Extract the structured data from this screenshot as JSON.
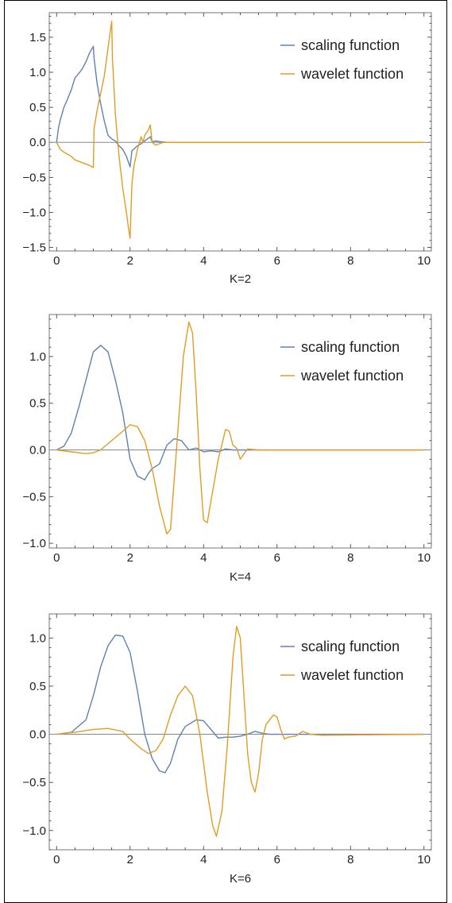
{
  "colors": {
    "scaling": "#5E81B5",
    "wavelet": "#E19C24",
    "axis": "#333333",
    "zero_line": "#888888",
    "frame": "#555555",
    "border": "#000000"
  },
  "chart_data": [
    {
      "type": "line",
      "xlabel": "K=2",
      "xlim": [
        -0.2,
        10.2
      ],
      "ylim": [
        -1.55,
        1.85
      ],
      "x_ticks": [
        0,
        2,
        4,
        6,
        8,
        10
      ],
      "x_tick_labels": [
        "0",
        "2",
        "4",
        "6",
        "8",
        "10"
      ],
      "y_ticks": [
        -1.5,
        -1.0,
        -0.5,
        0.0,
        0.5,
        1.0,
        1.5
      ],
      "y_tick_labels": [
        "−1.5",
        "−1.0",
        "−0.5",
        "0.0",
        "0.5",
        "1.0",
        "1.5"
      ],
      "legend_position": "top-right",
      "series": [
        {
          "name": "scaling function",
          "color": "#5E81B5",
          "points": [
            [
              0,
              0
            ],
            [
              0.05,
              0.2
            ],
            [
              0.1,
              0.32
            ],
            [
              0.2,
              0.5
            ],
            [
              0.3,
              0.62
            ],
            [
              0.4,
              0.75
            ],
            [
              0.5,
              0.92
            ],
            [
              0.55,
              0.95
            ],
            [
              0.6,
              0.98
            ],
            [
              0.7,
              1.05
            ],
            [
              0.8,
              1.15
            ],
            [
              0.9,
              1.28
            ],
            [
              1.0,
              1.37
            ],
            [
              1.02,
              1.2
            ],
            [
              1.1,
              0.85
            ],
            [
              1.2,
              0.55
            ],
            [
              1.3,
              0.3
            ],
            [
              1.4,
              0.1
            ],
            [
              1.5,
              0.05
            ],
            [
              1.6,
              0.02
            ],
            [
              1.7,
              -0.05
            ],
            [
              1.8,
              -0.1
            ],
            [
              1.9,
              -0.2
            ],
            [
              2.0,
              -0.35
            ],
            [
              2.05,
              -0.12
            ],
            [
              2.2,
              -0.05
            ],
            [
              2.3,
              -0.02
            ],
            [
              2.4,
              0.02
            ],
            [
              2.5,
              0.06
            ],
            [
              2.55,
              0.08
            ],
            [
              2.6,
              0.01
            ],
            [
              2.7,
              0.02
            ],
            [
              2.8,
              0.01
            ],
            [
              3.0,
              0
            ],
            [
              10,
              0
            ]
          ]
        },
        {
          "name": "wavelet function",
          "color": "#E19C24",
          "points": [
            [
              0,
              0
            ],
            [
              0.1,
              -0.1
            ],
            [
              0.2,
              -0.14
            ],
            [
              0.3,
              -0.17
            ],
            [
              0.4,
              -0.2
            ],
            [
              0.5,
              -0.25
            ],
            [
              0.6,
              -0.27
            ],
            [
              0.7,
              -0.29
            ],
            [
              0.8,
              -0.31
            ],
            [
              0.9,
              -0.33
            ],
            [
              1.0,
              -0.36
            ],
            [
              1.02,
              0.2
            ],
            [
              1.1,
              0.45
            ],
            [
              1.2,
              0.7
            ],
            [
              1.3,
              0.95
            ],
            [
              1.4,
              1.35
            ],
            [
              1.5,
              1.73
            ],
            [
              1.52,
              1.2
            ],
            [
              1.6,
              0.4
            ],
            [
              1.7,
              -0.2
            ],
            [
              1.8,
              -0.65
            ],
            [
              1.9,
              -1.0
            ],
            [
              1.95,
              -1.2
            ],
            [
              2.0,
              -1.37
            ],
            [
              2.05,
              -0.6
            ],
            [
              2.1,
              -0.35
            ],
            [
              2.2,
              -0.1
            ],
            [
              2.3,
              0.08
            ],
            [
              2.35,
              0.0
            ],
            [
              2.4,
              0.1
            ],
            [
              2.5,
              0.18
            ],
            [
              2.55,
              0.25
            ],
            [
              2.6,
              0.0
            ],
            [
              2.7,
              -0.04
            ],
            [
              2.8,
              -0.02
            ],
            [
              2.9,
              0.0
            ],
            [
              10,
              0
            ]
          ]
        }
      ]
    },
    {
      "type": "line",
      "xlabel": "K=4",
      "xlim": [
        -0.2,
        10.2
      ],
      "ylim": [
        -1.05,
        1.45
      ],
      "x_ticks": [
        0,
        2,
        4,
        6,
        8,
        10
      ],
      "x_tick_labels": [
        "0",
        "2",
        "4",
        "6",
        "8",
        "10"
      ],
      "y_ticks": [
        -1.0,
        -0.5,
        0.0,
        0.5,
        1.0
      ],
      "y_tick_labels": [
        "−1.0",
        "−0.5",
        "0.0",
        "0.5",
        "1.0"
      ],
      "legend_position": "top-right",
      "series": [
        {
          "name": "scaling function",
          "color": "#5E81B5",
          "points": [
            [
              0,
              0
            ],
            [
              0.2,
              0.04
            ],
            [
              0.4,
              0.18
            ],
            [
              0.6,
              0.45
            ],
            [
              0.8,
              0.75
            ],
            [
              1.0,
              1.05
            ],
            [
              1.2,
              1.12
            ],
            [
              1.4,
              1.05
            ],
            [
              1.6,
              0.75
            ],
            [
              1.8,
              0.4
            ],
            [
              2.0,
              -0.1
            ],
            [
              2.2,
              -0.28
            ],
            [
              2.4,
              -0.32
            ],
            [
              2.5,
              -0.25
            ],
            [
              2.6,
              -0.2
            ],
            [
              2.8,
              -0.15
            ],
            [
              3.0,
              0.05
            ],
            [
              3.2,
              0.12
            ],
            [
              3.4,
              0.1
            ],
            [
              3.6,
              0.0
            ],
            [
              3.8,
              0.02
            ],
            [
              4.0,
              -0.02
            ],
            [
              4.2,
              -0.01
            ],
            [
              4.4,
              -0.02
            ],
            [
              4.6,
              0.01
            ],
            [
              4.8,
              0.0
            ],
            [
              5.0,
              0
            ],
            [
              10,
              0
            ]
          ]
        },
        {
          "name": "wavelet function",
          "color": "#E19C24",
          "points": [
            [
              0,
              0
            ],
            [
              0.4,
              -0.02
            ],
            [
              0.8,
              -0.04
            ],
            [
              1.0,
              -0.03
            ],
            [
              1.2,
              0.0
            ],
            [
              1.5,
              0.1
            ],
            [
              1.8,
              0.2
            ],
            [
              2.0,
              0.27
            ],
            [
              2.2,
              0.25
            ],
            [
              2.4,
              0.1
            ],
            [
              2.6,
              -0.2
            ],
            [
              2.8,
              -0.6
            ],
            [
              3.0,
              -0.9
            ],
            [
              3.1,
              -0.85
            ],
            [
              3.3,
              0.2
            ],
            [
              3.45,
              1.0
            ],
            [
              3.6,
              1.37
            ],
            [
              3.7,
              1.25
            ],
            [
              3.8,
              0.6
            ],
            [
              3.9,
              -0.2
            ],
            [
              4.0,
              -0.75
            ],
            [
              4.1,
              -0.78
            ],
            [
              4.2,
              -0.55
            ],
            [
              4.4,
              -0.1
            ],
            [
              4.6,
              0.22
            ],
            [
              4.7,
              0.2
            ],
            [
              4.8,
              0.05
            ],
            [
              4.9,
              0.02
            ],
            [
              5.0,
              -0.1
            ],
            [
              5.1,
              -0.04
            ],
            [
              5.2,
              0.01
            ],
            [
              5.5,
              0.0
            ],
            [
              6.0,
              0.0
            ],
            [
              10,
              0
            ]
          ]
        }
      ]
    },
    {
      "type": "line",
      "xlabel": "K=6",
      "xlim": [
        -0.2,
        10.2
      ],
      "ylim": [
        -1.2,
        1.25
      ],
      "x_ticks": [
        0,
        2,
        4,
        6,
        8,
        10
      ],
      "x_tick_labels": [
        "0",
        "2",
        "4",
        "6",
        "8",
        "10"
      ],
      "y_ticks": [
        -1.0,
        -0.5,
        0.0,
        0.5,
        1.0
      ],
      "y_tick_labels": [
        "−1.0",
        "−0.5",
        "0.0",
        "0.5",
        "1.0"
      ],
      "legend_position": "top-right",
      "series": [
        {
          "name": "scaling function",
          "color": "#5E81B5",
          "points": [
            [
              0,
              0
            ],
            [
              0.4,
              0.02
            ],
            [
              0.8,
              0.15
            ],
            [
              1.0,
              0.4
            ],
            [
              1.2,
              0.7
            ],
            [
              1.4,
              0.92
            ],
            [
              1.6,
              1.03
            ],
            [
              1.8,
              1.02
            ],
            [
              2.0,
              0.85
            ],
            [
              2.2,
              0.45
            ],
            [
              2.4,
              0.0
            ],
            [
              2.6,
              -0.25
            ],
            [
              2.8,
              -0.38
            ],
            [
              2.95,
              -0.4
            ],
            [
              3.1,
              -0.3
            ],
            [
              3.3,
              -0.05
            ],
            [
              3.5,
              0.08
            ],
            [
              3.8,
              0.15
            ],
            [
              4.0,
              0.14
            ],
            [
              4.2,
              0.05
            ],
            [
              4.4,
              -0.04
            ],
            [
              4.6,
              -0.03
            ],
            [
              4.8,
              -0.03
            ],
            [
              5.0,
              -0.02
            ],
            [
              5.2,
              0.0
            ],
            [
              5.4,
              0.03
            ],
            [
              5.6,
              0.01
            ],
            [
              5.8,
              0.0
            ],
            [
              6.0,
              0.0
            ],
            [
              10,
              0
            ]
          ]
        },
        {
          "name": "wavelet function",
          "color": "#E19C24",
          "points": [
            [
              0,
              0
            ],
            [
              0.5,
              0.02
            ],
            [
              1.0,
              0.05
            ],
            [
              1.4,
              0.06
            ],
            [
              1.8,
              0.03
            ],
            [
              2.0,
              -0.05
            ],
            [
              2.3,
              -0.15
            ],
            [
              2.5,
              -0.2
            ],
            [
              2.7,
              -0.17
            ],
            [
              2.9,
              -0.05
            ],
            [
              3.1,
              0.2
            ],
            [
              3.3,
              0.4
            ],
            [
              3.5,
              0.5
            ],
            [
              3.7,
              0.4
            ],
            [
              3.9,
              0.0
            ],
            [
              4.1,
              -0.6
            ],
            [
              4.25,
              -0.95
            ],
            [
              4.35,
              -1.06
            ],
            [
              4.5,
              -0.8
            ],
            [
              4.65,
              -0.1
            ],
            [
              4.8,
              0.8
            ],
            [
              4.9,
              1.12
            ],
            [
              5.0,
              1.0
            ],
            [
              5.1,
              0.4
            ],
            [
              5.2,
              -0.2
            ],
            [
              5.3,
              -0.5
            ],
            [
              5.4,
              -0.6
            ],
            [
              5.5,
              -0.4
            ],
            [
              5.6,
              -0.05
            ],
            [
              5.7,
              0.1
            ],
            [
              5.8,
              0.15
            ],
            [
              5.9,
              0.2
            ],
            [
              6.0,
              0.18
            ],
            [
              6.1,
              0.05
            ],
            [
              6.2,
              -0.05
            ],
            [
              6.3,
              -0.03
            ],
            [
              6.5,
              -0.02
            ],
            [
              6.7,
              0.03
            ],
            [
              6.9,
              0.0
            ],
            [
              7.2,
              -0.01
            ],
            [
              10,
              0
            ]
          ]
        }
      ]
    }
  ]
}
